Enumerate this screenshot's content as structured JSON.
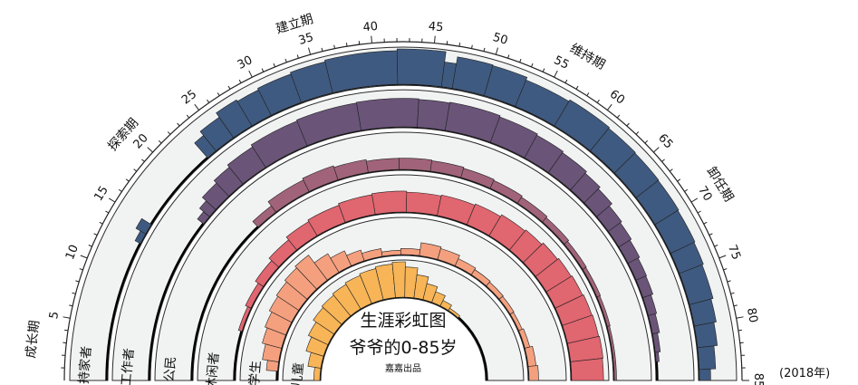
{
  "chart_data": {
    "type": "rainbow",
    "title_line1": "生涯彩虹图",
    "title_line2": "爷爷的0-85岁",
    "credit": "嘉嘉出品",
    "year_note": "(2018年)",
    "age_range": [
      0,
      85
    ],
    "ticks": [
      5,
      10,
      15,
      20,
      25,
      30,
      35,
      40,
      45,
      50,
      55,
      60,
      65,
      70,
      75,
      80,
      85
    ],
    "stages": [
      {
        "label": "成长期",
        "age": 3
      },
      {
        "label": "探索期",
        "age": 19.5
      },
      {
        "label": "建立期",
        "age": 34.5
      },
      {
        "label": "维持期",
        "age": 56.5
      },
      {
        "label": "卸任期",
        "age": 70
      }
    ],
    "roles": [
      {
        "name": "持家者",
        "color": "#3f5a80",
        "segments": [
          [
            0,
            13,
            0
          ],
          [
            13,
            14,
            0.15
          ],
          [
            14,
            15,
            0.3
          ],
          [
            15,
            23,
            0
          ],
          [
            23,
            24,
            0.55
          ],
          [
            24,
            26,
            0.7
          ],
          [
            26,
            28,
            0.85
          ],
          [
            28,
            30,
            0.8
          ],
          [
            30,
            33,
            0.85
          ],
          [
            33,
            36,
            0.9
          ],
          [
            36,
            42,
            0.95
          ],
          [
            42,
            46,
            1.0
          ],
          [
            46,
            47,
            0.7
          ],
          [
            47,
            50,
            0.9
          ],
          [
            50,
            53,
            0.88
          ],
          [
            53,
            57,
            0.8
          ],
          [
            57,
            61,
            0.85
          ],
          [
            61,
            64,
            0.82
          ],
          [
            64,
            67,
            0.8
          ],
          [
            67,
            70,
            0.78
          ],
          [
            70,
            73,
            0.75
          ],
          [
            73,
            75,
            0.72
          ],
          [
            75,
            78,
            0.68
          ],
          [
            78,
            80,
            0.62
          ],
          [
            80,
            82,
            0.55
          ],
          [
            82,
            84,
            0.45
          ],
          [
            84,
            85,
            0.3
          ]
        ]
      },
      {
        "name": "工作者",
        "color": "#6a5478",
        "segments": [
          [
            0,
            18,
            0
          ],
          [
            18,
            19,
            0.2
          ],
          [
            19,
            20,
            0.35
          ],
          [
            20,
            22,
            0.5
          ],
          [
            22,
            24,
            0.6
          ],
          [
            24,
            27,
            0.68
          ],
          [
            27,
            32,
            0.75
          ],
          [
            32,
            38,
            0.78
          ],
          [
            38,
            44,
            0.8
          ],
          [
            44,
            47,
            0.78
          ],
          [
            47,
            52,
            0.8
          ],
          [
            52,
            56,
            0.76
          ],
          [
            56,
            59,
            0.72
          ],
          [
            59,
            62,
            0.68
          ],
          [
            62,
            64,
            0.62
          ],
          [
            64,
            66,
            0.55
          ],
          [
            66,
            68,
            0.45
          ],
          [
            68,
            70,
            0.4
          ],
          [
            70,
            72,
            0.35
          ],
          [
            72,
            74,
            0.3
          ],
          [
            74,
            76,
            0.28
          ],
          [
            76,
            78,
            0.22
          ],
          [
            78,
            80,
            0.18
          ],
          [
            80,
            82,
            0.12
          ],
          [
            82,
            83,
            0.06
          ],
          [
            83,
            85,
            0
          ]
        ]
      },
      {
        "name": "公民",
        "color": "#a0637a",
        "segments": [
          [
            0,
            22,
            0
          ],
          [
            22,
            25,
            0.2
          ],
          [
            25,
            30,
            0.35
          ],
          [
            30,
            34,
            0.4
          ],
          [
            34,
            38,
            0.35
          ],
          [
            38,
            42,
            0.3
          ],
          [
            42,
            46,
            0.3
          ],
          [
            46,
            50,
            0.28
          ],
          [
            50,
            54,
            0.25
          ],
          [
            54,
            58,
            0.22
          ],
          [
            58,
            62,
            0.18
          ],
          [
            62,
            66,
            0.14
          ],
          [
            66,
            70,
            0.1
          ],
          [
            70,
            74,
            0.08
          ],
          [
            74,
            78,
            0.06
          ],
          [
            78,
            85,
            0.04
          ]
        ]
      },
      {
        "name": "休闲者",
        "color": "#e06670",
        "segments": [
          [
            0,
            8,
            0
          ],
          [
            8,
            12,
            0.08
          ],
          [
            12,
            16,
            0.15
          ],
          [
            16,
            20,
            0.25
          ],
          [
            20,
            24,
            0.35
          ],
          [
            24,
            28,
            0.45
          ],
          [
            28,
            33,
            0.5
          ],
          [
            33,
            38,
            0.55
          ],
          [
            38,
            43,
            0.58
          ],
          [
            43,
            48,
            0.55
          ],
          [
            48,
            53,
            0.58
          ],
          [
            53,
            57,
            0.62
          ],
          [
            57,
            61,
            0.68
          ],
          [
            61,
            64,
            0.72
          ],
          [
            64,
            67,
            0.78
          ],
          [
            67,
            70,
            0.82
          ],
          [
            70,
            73,
            0.85
          ],
          [
            73,
            76,
            0.88
          ],
          [
            76,
            79,
            0.9
          ],
          [
            79,
            82,
            0.92
          ],
          [
            82,
            85,
            0.9
          ]
        ]
      },
      {
        "name": "学生",
        "color": "#f4a07f",
        "segments": [
          [
            0,
            2,
            0
          ],
          [
            2,
            4,
            0.3
          ],
          [
            4,
            7,
            0.45
          ],
          [
            7,
            10,
            0.55
          ],
          [
            10,
            13,
            0.62
          ],
          [
            13,
            16,
            0.7
          ],
          [
            16,
            19,
            0.75
          ],
          [
            19,
            22,
            0.82
          ],
          [
            22,
            25,
            0.88
          ],
          [
            25,
            28,
            0.6
          ],
          [
            28,
            31,
            0.45
          ],
          [
            31,
            34,
            0.3
          ],
          [
            34,
            38,
            0.2
          ],
          [
            38,
            42,
            0.1
          ],
          [
            42,
            46,
            0.15
          ],
          [
            46,
            50,
            0.35
          ],
          [
            50,
            54,
            0.3
          ],
          [
            54,
            58,
            0.2
          ],
          [
            58,
            62,
            0.15
          ],
          [
            62,
            66,
            0.12
          ],
          [
            66,
            70,
            0.1
          ],
          [
            70,
            74,
            0.08
          ],
          [
            74,
            78,
            0.12
          ],
          [
            78,
            82,
            0.2
          ],
          [
            82,
            85,
            0.25
          ]
        ]
      },
      {
        "name": "儿童",
        "color": "#f7b558",
        "segments": [
          [
            0,
            4,
            0.15
          ],
          [
            4,
            8,
            0.35
          ],
          [
            8,
            12,
            0.5
          ],
          [
            12,
            16,
            0.6
          ],
          [
            16,
            20,
            0.7
          ],
          [
            20,
            24,
            0.75
          ],
          [
            24,
            28,
            0.8
          ],
          [
            28,
            32,
            0.85
          ],
          [
            32,
            36,
            0.9
          ],
          [
            36,
            40,
            0.95
          ],
          [
            40,
            43,
            1.0
          ],
          [
            43,
            46,
            0.85
          ],
          [
            46,
            49,
            0.65
          ],
          [
            49,
            52,
            0.45
          ],
          [
            52,
            55,
            0.3
          ],
          [
            55,
            58,
            0.15
          ],
          [
            58,
            62,
            0.05
          ],
          [
            62,
            85,
            0
          ]
        ]
      }
    ]
  }
}
